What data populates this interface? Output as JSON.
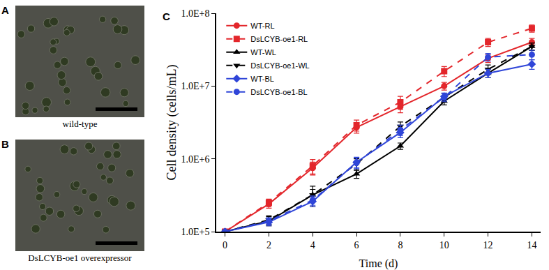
{
  "images": [
    {
      "label": "A",
      "caption": "wild-type"
    },
    {
      "label": "B",
      "caption": "DsLCYB-oe1 overexpressor"
    }
  ],
  "chart_data": {
    "type": "line",
    "panel_label": "C",
    "x_label": "Time (d)",
    "y_label": "Cell density (cells/mL)",
    "x": [
      0,
      2,
      4,
      6,
      8,
      10,
      12,
      14
    ],
    "xlim": [
      -0.4,
      14.4
    ],
    "xticks": [
      0,
      2,
      4,
      6,
      8,
      10,
      12,
      14
    ],
    "ylim": [
      100000,
      100000000
    ],
    "yticks": [
      {
        "value": 100000,
        "label": "1.0E+5"
      },
      {
        "value": 1000000,
        "label": "1.0E+6"
      },
      {
        "value": 10000000,
        "label": "1.0E+7"
      },
      {
        "value": 100000000,
        "label": "1.0E+8"
      }
    ],
    "log": "y",
    "grid": false,
    "legend": "upper left",
    "series": [
      {
        "name": "WT-RL",
        "color": "#e3262b",
        "marker": "circle",
        "line_style": "solid",
        "values": [
          100000,
          240000,
          750000,
          2700000,
          5200000,
          10000000,
          24000000,
          40000000
        ],
        "errors": [
          3000,
          30000,
          150000,
          450000,
          900000,
          1200000,
          3000000,
          5000000
        ]
      },
      {
        "name": "DsLCYB-oe1-RL",
        "color": "#e3262b",
        "marker": "square",
        "line_style": "dash",
        "values": [
          100000,
          250000,
          800000,
          2900000,
          6000000,
          16000000,
          40000000,
          62000000
        ],
        "errors": [
          3000,
          30000,
          180000,
          500000,
          1200000,
          2500000,
          5000000,
          7000000
        ]
      },
      {
        "name": "WT-WL",
        "color": "#000000",
        "marker": "triangle-up",
        "line_style": "solid",
        "values": [
          100000,
          140000,
          320000,
          620000,
          1500000,
          6200000,
          15000000,
          35000000
        ],
        "errors": [
          3000,
          20000,
          60000,
          80000,
          150000,
          700000,
          2000000,
          4000000
        ]
      },
      {
        "name": "DsLCYB-oe1-WL",
        "color": "#000000",
        "marker": "triangle-down",
        "line_style": "dash",
        "values": [
          100000,
          145000,
          320000,
          850000,
          2800000,
          7000000,
          17000000,
          35000000
        ],
        "errors": [
          3000,
          20000,
          100000,
          150000,
          400000,
          900000,
          2500000,
          4000000
        ]
      },
      {
        "name": "WT-BL",
        "color": "#2f45d8",
        "marker": "diamond",
        "line_style": "solid",
        "values": [
          100000,
          135000,
          260000,
          900000,
          2300000,
          7200000,
          15000000,
          20000000
        ],
        "errors": [
          3000,
          15000,
          40000,
          150000,
          350000,
          800000,
          2000000,
          3000000
        ]
      },
      {
        "name": "DsLCYB-oe1-BL",
        "color": "#2f45d8",
        "marker": "circle",
        "line_style": "dash",
        "values": [
          100000,
          140000,
          270000,
          880000,
          2500000,
          7000000,
          25000000,
          27000000
        ],
        "errors": [
          3000,
          15000,
          40000,
          150000,
          400000,
          900000,
          3000000,
          4000000
        ]
      }
    ]
  }
}
